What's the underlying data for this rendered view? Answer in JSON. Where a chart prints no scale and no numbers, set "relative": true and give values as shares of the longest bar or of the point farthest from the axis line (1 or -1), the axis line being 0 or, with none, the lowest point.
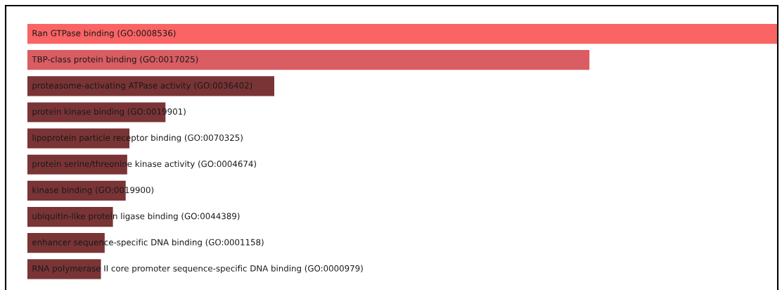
{
  "chart_data": {
    "type": "bar",
    "orientation": "horizontal",
    "relative": true,
    "categories": [
      "Ran GTPase binding (GO:0008536)",
      "TBP-class protein binding (GO:0017025)",
      "proteasome-activating ATPase activity (GO:0036402)",
      "protein kinase binding (GO:0019901)",
      "lipoprotein particle receptor binding (GO:0070325)",
      "protein serine/threonine kinase activity (GO:0004674)",
      "kinase binding (GO:0019900)",
      "ubiquitin-like protein ligase binding (GO:0044389)",
      "enhancer sequence-specific DNA binding (GO:0001158)",
      "RNA polymerase II core promoter sequence-specific DNA binding (GO:0000979)"
    ],
    "values": [
      1,
      0.749,
      0.329,
      0.184,
      0.136,
      0.133,
      0.131,
      0.114,
      0.103,
      0.098
    ],
    "colors": [
      "#fa6464",
      "#d95d62",
      "#7a3436",
      "#7a3436",
      "#7a3436",
      "#7a3436",
      "#7a3436",
      "#7a3436",
      "#7a3436",
      "#7a3436"
    ],
    "legend": false
  }
}
